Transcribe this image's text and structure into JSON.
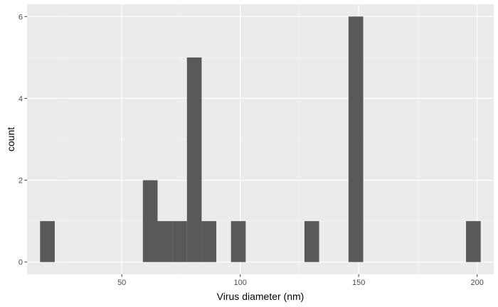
{
  "chart_data": {
    "type": "bar",
    "histogram": true,
    "xlabel": "Virus diameter (nm)",
    "ylabel": "count",
    "xlim": [
      10,
      207
    ],
    "ylim": [
      -0.3,
      6.3
    ],
    "x_ticks": [
      50,
      100,
      150,
      200
    ],
    "y_ticks": [
      0,
      2,
      4,
      6
    ],
    "bin_width": 6.2,
    "bins": [
      {
        "x": 18.6,
        "count": 1
      },
      {
        "x": 62.0,
        "count": 2
      },
      {
        "x": 68.2,
        "count": 1
      },
      {
        "x": 74.4,
        "count": 1
      },
      {
        "x": 80.6,
        "count": 5
      },
      {
        "x": 86.8,
        "count": 1
      },
      {
        "x": 99.2,
        "count": 1
      },
      {
        "x": 130.2,
        "count": 1
      },
      {
        "x": 148.8,
        "count": 6
      },
      {
        "x": 198.4,
        "count": 1
      }
    ],
    "grid": true,
    "colors": {
      "panel": "#ebebeb",
      "grid_major": "#ffffff",
      "grid_minor": "#f5f5f5",
      "bar": "#595959"
    }
  }
}
